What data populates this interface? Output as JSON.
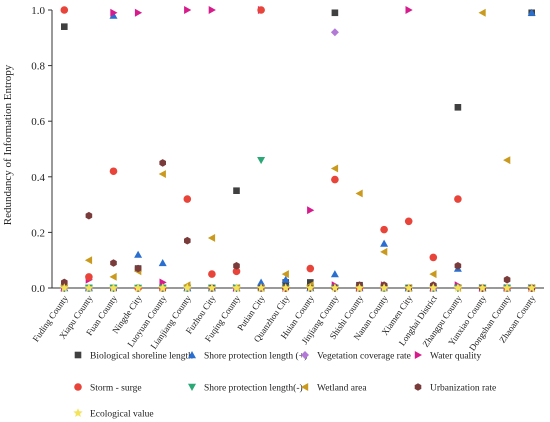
{
  "chart_data": {
    "type": "scatter",
    "ylabel": "Redundancy of Information Entropy",
    "xlabel": "",
    "ylim": [
      0,
      1.0
    ],
    "yticks": [
      "0.0",
      "0.2",
      "0.4",
      "0.6",
      "0.8",
      "1.0"
    ],
    "grid": false,
    "legend_position": "bottom",
    "categories": [
      "Fuding County",
      "Xiapu County",
      "Fuan County",
      "Ningde City",
      "Luoyuan County",
      "Lianjiang County",
      "Fuzhou City",
      "Fuqing County",
      "Putian City",
      "Quanzhou City",
      "Huian County",
      "Jinjiang County",
      "Shishi County",
      "Nanan County",
      "Xiamen City",
      "Longhai District",
      "Zhangpu County",
      "Yunxiao County",
      "Dongshan County",
      "Zhaoan County"
    ],
    "series": [
      {
        "name": "Biological shoreline length",
        "marker": "square",
        "color": "#404040",
        "values": [
          0.94,
          0.0,
          0.0,
          0.07,
          0.0,
          0.0,
          0.0,
          0.35,
          0.0,
          0.02,
          0.02,
          0.99,
          0.01,
          0.0,
          0.0,
          0.0,
          0.65,
          0.0,
          0.0,
          0.99
        ]
      },
      {
        "name": "Shore protection length (+)",
        "marker": "triangle-up",
        "color": "#2a6fcf",
        "values": [
          0.0,
          0.0,
          0.98,
          0.12,
          0.09,
          0.0,
          0.0,
          0.0,
          0.02,
          0.03,
          0.0,
          0.05,
          0.0,
          0.16,
          0.0,
          0.0,
          0.07,
          0.0,
          0.0,
          0.99
        ]
      },
      {
        "name": "Vegetation coverage rate",
        "marker": "diamond",
        "color": "#b27ad6",
        "values": [
          0.0,
          0.0,
          0.0,
          0.0,
          0.0,
          0.0,
          0.0,
          0.0,
          0.0,
          0.0,
          0.0,
          0.92,
          0.0,
          0.0,
          0.0,
          0.0,
          0.0,
          0.0,
          0.0,
          0.0
        ]
      },
      {
        "name": "Water quality",
        "marker": "triangle-right",
        "color": "#d81b8c",
        "values": [
          0.0,
          0.03,
          0.99,
          0.99,
          0.02,
          1.0,
          1.0,
          0.0,
          1.0,
          0.0,
          0.28,
          0.01,
          0.0,
          0.01,
          1.0,
          0.0,
          0.01,
          0.0,
          0.0,
          0.0
        ]
      },
      {
        "name": "Storm - surge",
        "marker": "circle",
        "color": "#e8443a",
        "values": [
          1.0,
          0.04,
          0.42,
          0.0,
          0.0,
          0.32,
          0.05,
          0.06,
          1.0,
          0.0,
          0.07,
          0.39,
          0.0,
          0.21,
          0.24,
          0.11,
          0.32,
          0.0,
          0.0,
          0.0
        ]
      },
      {
        "name": "Shore protection length(-)",
        "marker": "triangle-down",
        "color": "#2aa876",
        "values": [
          0.0,
          0.0,
          0.0,
          0.0,
          0.0,
          0.0,
          0.0,
          0.0,
          0.46,
          0.0,
          0.0,
          0.0,
          0.0,
          0.0,
          0.0,
          0.0,
          0.0,
          0.0,
          0.0,
          0.0
        ]
      },
      {
        "name": "Wetland area",
        "marker": "triangle-left",
        "color": "#c99a1e",
        "values": [
          0.01,
          0.1,
          0.04,
          0.06,
          0.41,
          0.01,
          0.18,
          0.0,
          0.0,
          0.05,
          0.01,
          0.43,
          0.34,
          0.13,
          0.0,
          0.05,
          0.0,
          0.99,
          0.46,
          0.0
        ]
      },
      {
        "name": "Urbanization rate",
        "marker": "hexagon",
        "color": "#7a3b3b",
        "values": [
          0.02,
          0.26,
          0.09,
          0.07,
          0.45,
          0.17,
          0.0,
          0.08,
          0.0,
          0.0,
          0.0,
          0.0,
          0.01,
          0.01,
          0.0,
          0.01,
          0.08,
          0.0,
          0.03,
          0.0
        ]
      },
      {
        "name": "Ecological value",
        "marker": "star",
        "color": "#f2e35a",
        "values": [
          0.0,
          0.0,
          0.0,
          0.0,
          0.0,
          0.0,
          0.0,
          0.0,
          0.0,
          0.0,
          0.0,
          0.0,
          0.0,
          0.0,
          0.0,
          0.0,
          0.0,
          0.0,
          0.0,
          0.0
        ]
      }
    ]
  }
}
